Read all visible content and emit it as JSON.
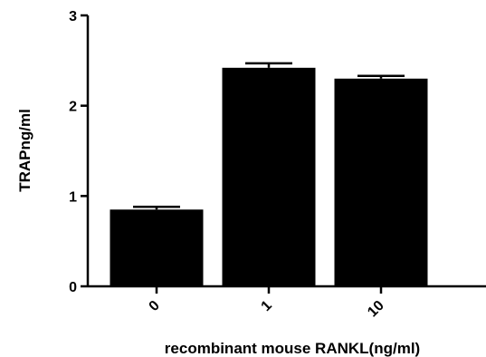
{
  "chart_data": {
    "type": "bar",
    "title": "",
    "xlabel": "recombinant mouse RANKL(ng/ml)",
    "ylabel": "TRAPng/ml",
    "categories": [
      "0",
      "1",
      "10"
    ],
    "values": [
      0.85,
      2.42,
      2.3
    ],
    "errors": [
      0.03,
      0.05,
      0.03
    ],
    "ylim": [
      0,
      3
    ],
    "yticks": [
      "0",
      "1",
      "2",
      "3"
    ],
    "grid": false,
    "bar_color": "#000000"
  }
}
